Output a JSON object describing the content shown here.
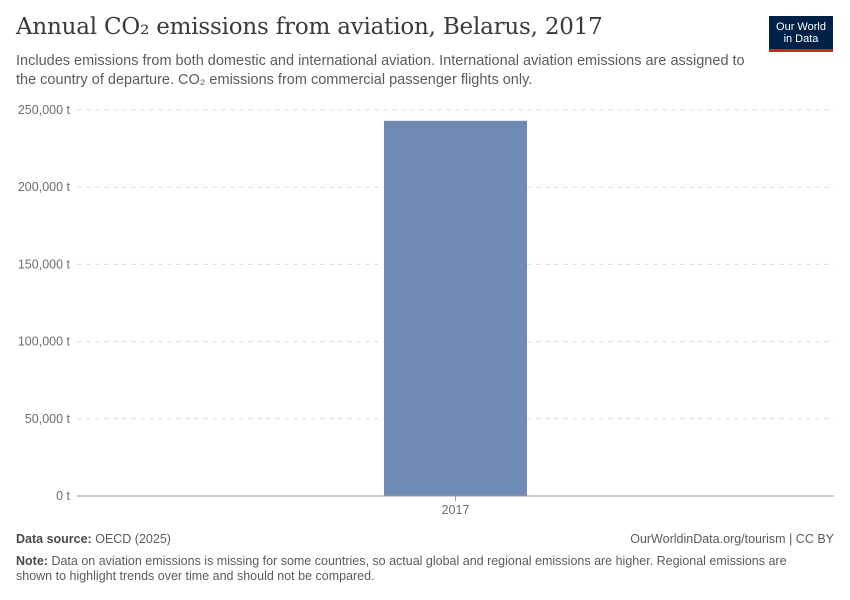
{
  "header": {
    "title": "Annual CO₂ emissions from aviation, Belarus, 2017",
    "subtitle": "Includes emissions from both domestic and international aviation. International aviation emissions are assigned to the country of departure. CO₂ emissions from commercial passenger flights only."
  },
  "logo": {
    "line1": "Our World",
    "line2": "in Data",
    "bg_color": "#002147",
    "accent_color": "#ce261e"
  },
  "chart_data": {
    "type": "bar",
    "categories": [
      "2017"
    ],
    "series": [
      {
        "values": [
          243000
        ],
        "color": "#6f8ab3"
      }
    ],
    "ylim": [
      0,
      250000
    ],
    "yticks": [
      0,
      50000,
      100000,
      150000,
      200000,
      250000
    ],
    "ytick_labels": [
      "0 t",
      "50,000 t",
      "100,000 t",
      "150,000 t",
      "200,000 t",
      "250,000 t"
    ],
    "grid": true
  },
  "footer": {
    "source_label": "Data source:",
    "source_value": "OECD (2025)",
    "license": "OurWorldinData.org/tourism | CC BY",
    "note_label": "Note:",
    "note_text": "Data on aviation emissions is missing for some countries, so actual global and regional emissions are higher. Regional emissions are shown to highlight trends over time and should not be compared."
  }
}
